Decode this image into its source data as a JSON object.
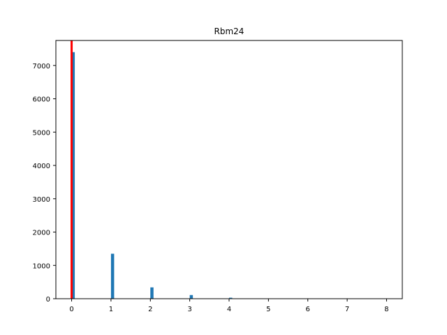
{
  "chart_data": {
    "type": "bar",
    "title": "Rbm24",
    "xlabel": "",
    "ylabel": "",
    "xlim": [
      -0.4,
      8.4
    ],
    "ylim": [
      0,
      7750
    ],
    "x_ticks": [
      0,
      1,
      2,
      3,
      4,
      5,
      6,
      7,
      8
    ],
    "y_ticks": [
      0,
      1000,
      2000,
      3000,
      4000,
      5000,
      6000,
      7000
    ],
    "bin_width": 0.08,
    "bar_color": "#1f77b4",
    "bars": [
      {
        "x": 0,
        "value": 7400
      },
      {
        "x": 1,
        "value": 1350
      },
      {
        "x": 2,
        "value": 340
      },
      {
        "x": 3,
        "value": 110
      },
      {
        "x": 4,
        "value": 30
      },
      {
        "x": 5,
        "value": 10
      },
      {
        "x": 6,
        "value": 3
      },
      {
        "x": 7,
        "value": 2
      },
      {
        "x": 8,
        "value": 1
      }
    ],
    "vertical_line": {
      "x": 0,
      "color": "#ff0000"
    },
    "grid": false,
    "legend": "none"
  }
}
